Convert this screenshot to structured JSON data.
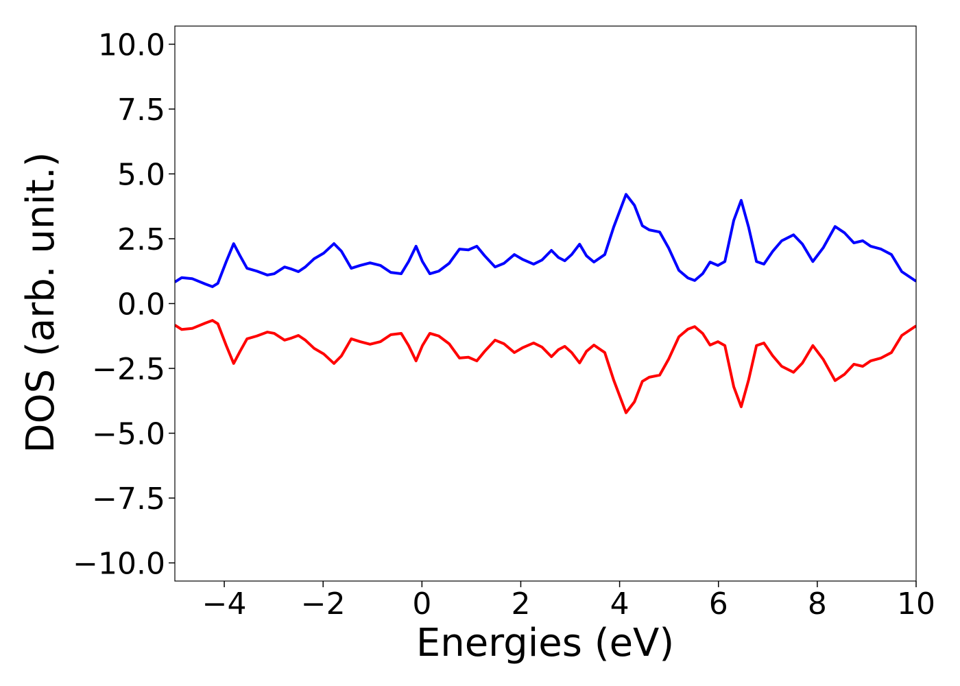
{
  "chart_data": {
    "type": "line",
    "x_label": "Energies (eV)",
    "y_label": "DOS (arb. unit.)",
    "x": [
      -5.0,
      -4.86,
      -4.65,
      -4.38,
      -4.24,
      -4.13,
      -3.96,
      -3.81,
      -3.68,
      -3.54,
      -3.34,
      -3.13,
      -2.99,
      -2.78,
      -2.64,
      -2.5,
      -2.36,
      -2.18,
      -1.99,
      -1.78,
      -1.63,
      -1.43,
      -1.25,
      -1.05,
      -0.84,
      -0.63,
      -0.42,
      -0.27,
      -0.12,
      0.01,
      0.16,
      0.34,
      0.55,
      0.76,
      0.94,
      1.11,
      1.27,
      1.48,
      1.66,
      1.87,
      2.04,
      2.26,
      2.43,
      2.62,
      2.76,
      2.89,
      3.03,
      3.19,
      3.33,
      3.48,
      3.7,
      3.88,
      4.13,
      4.3,
      4.46,
      4.6,
      4.81,
      4.99,
      5.2,
      5.38,
      5.52,
      5.68,
      5.83,
      5.99,
      6.13,
      6.31,
      6.46,
      6.61,
      6.77,
      6.92,
      7.1,
      7.28,
      7.52,
      7.7,
      7.91,
      8.12,
      8.36,
      8.55,
      8.74,
      8.92,
      9.08,
      9.29,
      9.5,
      9.71,
      10.0
    ],
    "series": [
      {
        "color": "#0000ff",
        "values": [
          0.83,
          1.0,
          0.96,
          0.75,
          0.65,
          0.78,
          1.62,
          2.31,
          1.84,
          1.36,
          1.25,
          1.1,
          1.15,
          1.41,
          1.33,
          1.23,
          1.41,
          1.73,
          1.94,
          2.31,
          2.02,
          1.36,
          1.47,
          1.57,
          1.47,
          1.2,
          1.15,
          1.62,
          2.21,
          1.62,
          1.15,
          1.25,
          1.55,
          2.1,
          2.07,
          2.21,
          1.84,
          1.41,
          1.55,
          1.89,
          1.7,
          1.52,
          1.68,
          2.05,
          1.78,
          1.65,
          1.89,
          2.29,
          1.84,
          1.6,
          1.89,
          2.95,
          4.21,
          3.79,
          3.0,
          2.84,
          2.76,
          2.15,
          1.28,
          0.99,
          0.89,
          1.15,
          1.6,
          1.47,
          1.62,
          3.21,
          3.98,
          2.95,
          1.62,
          1.52,
          2.02,
          2.42,
          2.65,
          2.29,
          1.62,
          2.15,
          2.97,
          2.73,
          2.34,
          2.42,
          2.21,
          2.1,
          1.89,
          1.23,
          0.86
        ]
      },
      {
        "color": "#ff0000",
        "values": [
          -0.83,
          -1.0,
          -0.96,
          -0.75,
          -0.65,
          -0.78,
          -1.62,
          -2.31,
          -1.84,
          -1.36,
          -1.25,
          -1.1,
          -1.15,
          -1.41,
          -1.33,
          -1.23,
          -1.41,
          -1.73,
          -1.94,
          -2.31,
          -2.02,
          -1.36,
          -1.47,
          -1.57,
          -1.47,
          -1.2,
          -1.15,
          -1.62,
          -2.21,
          -1.62,
          -1.15,
          -1.25,
          -1.55,
          -2.1,
          -2.07,
          -2.21,
          -1.84,
          -1.41,
          -1.55,
          -1.89,
          -1.7,
          -1.52,
          -1.68,
          -2.05,
          -1.78,
          -1.65,
          -1.89,
          -2.29,
          -1.84,
          -1.6,
          -1.89,
          -2.95,
          -4.21,
          -3.79,
          -3.0,
          -2.84,
          -2.76,
          -2.15,
          -1.28,
          -0.99,
          -0.89,
          -1.15,
          -1.6,
          -1.47,
          -1.62,
          -3.21,
          -3.98,
          -2.95,
          -1.62,
          -1.52,
          -2.02,
          -2.42,
          -2.65,
          -2.29,
          -1.62,
          -2.15,
          -2.97,
          -2.73,
          -2.34,
          -2.42,
          -2.21,
          -2.1,
          -1.89,
          -1.23,
          -0.86
        ]
      }
    ],
    "xlim": [
      -5,
      10
    ],
    "xticks": [
      {
        "value": -4,
        "label": "−4"
      },
      {
        "value": -2,
        "label": "−2"
      },
      0,
      2,
      4,
      6,
      8,
      10
    ],
    "ylim": [
      -10.7,
      10.7
    ],
    "yticks": [
      {
        "value": -10,
        "label": "−10.0"
      },
      {
        "value": -7.5,
        "label": "−7.5"
      },
      {
        "value": -5,
        "label": "−5.0"
      },
      {
        "value": -2.5,
        "label": "−2.5"
      },
      {
        "value": 0,
        "label": "0.0"
      },
      {
        "value": 2.5,
        "label": "2.5"
      },
      {
        "value": 5,
        "label": "5.0"
      },
      {
        "value": 7.5,
        "label": "7.5"
      },
      {
        "value": 10,
        "label": "10.0"
      }
    ],
    "grid": false
  }
}
